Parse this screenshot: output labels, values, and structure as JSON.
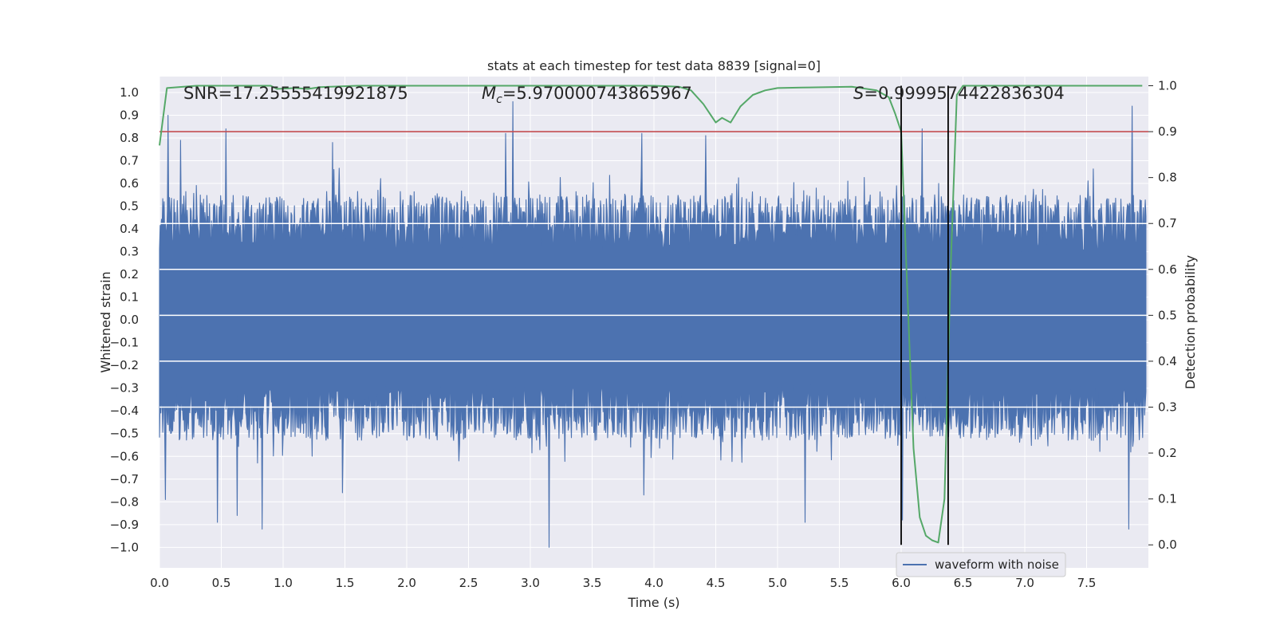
{
  "chart_data": {
    "type": "line",
    "title": "stats at each timestep for test data 8839 [signal=0]",
    "xlabel": "Time (s)",
    "ylabel_left": "Whitened strain",
    "ylabel_right": "Detection probability",
    "xlim": [
      0.0,
      8.0
    ],
    "ylim_left": [
      -1.09,
      1.07
    ],
    "ylim_right": [
      -0.05,
      1.02
    ],
    "x_ticks": [
      "0.0",
      "0.5",
      "1.0",
      "1.5",
      "2.0",
      "2.5",
      "3.0",
      "3.5",
      "4.0",
      "4.5",
      "5.0",
      "5.5",
      "6.0",
      "6.5",
      "7.0",
      "7.5"
    ],
    "y_left_ticks": [
      "1.0",
      "0.9",
      "0.8",
      "0.7",
      "0.6",
      "0.5",
      "0.4",
      "0.3",
      "0.2",
      "0.1",
      "0.0",
      "-0.1",
      "-0.2",
      "-0.3",
      "-0.4",
      "-0.5",
      "-0.6",
      "-0.7",
      "-0.8",
      "-0.9",
      "-1.0"
    ],
    "y_right_ticks": [
      "1.0",
      "0.9",
      "0.8",
      "0.7",
      "0.6",
      "0.5",
      "0.4",
      "0.3",
      "0.2",
      "0.1",
      "0.0"
    ],
    "grid": true,
    "annotations": {
      "snr": "SNR=17.25555419921875",
      "mc_symbol": "M",
      "mc_subscript": "c",
      "mc_value": "=5.970000743865967",
      "s_symbol": "S",
      "s_value": "=0.9999574422836304"
    },
    "legend": {
      "entries": [
        "waveform with noise"
      ],
      "placement": "lower-right"
    },
    "colors": {
      "waveform": "#4c72b0",
      "probability": "#55a868",
      "threshold": "#c44e52",
      "markers": "#000000",
      "background": "#eaeaf2",
      "grid": "#ffffff"
    },
    "series": [
      {
        "name": "waveform with noise",
        "axis": "left",
        "description": "whitened strain noise, roughly +/-0.55 with spikes up to 0.96 and down to -1.0",
        "samples": 1500,
        "peak_spikes": [
          {
            "x": 0.07,
            "y": 0.9
          },
          {
            "x": 0.17,
            "y": 0.79
          },
          {
            "x": 0.54,
            "y": 0.84
          },
          {
            "x": 1.4,
            "y": 0.78
          },
          {
            "x": 2.8,
            "y": 0.82
          },
          {
            "x": 2.86,
            "y": 0.96
          },
          {
            "x": 3.9,
            "y": 0.82
          },
          {
            "x": 4.42,
            "y": 0.81
          },
          {
            "x": 6.17,
            "y": 0.84
          },
          {
            "x": 7.87,
            "y": 0.94
          }
        ],
        "trough_spikes": [
          {
            "x": 0.05,
            "y": -0.79
          },
          {
            "x": 0.47,
            "y": -0.89
          },
          {
            "x": 0.63,
            "y": -0.86
          },
          {
            "x": 0.83,
            "y": -0.92
          },
          {
            "x": 1.48,
            "y": -0.76
          },
          {
            "x": 3.15,
            "y": -1.0
          },
          {
            "x": 3.92,
            "y": -0.77
          },
          {
            "x": 5.22,
            "y": -0.89
          },
          {
            "x": 6.01,
            "y": -0.88
          },
          {
            "x": 7.84,
            "y": -0.92
          }
        ]
      },
      {
        "name": "detection probability",
        "axis": "right",
        "x": [
          0.0,
          0.06,
          0.3,
          0.6,
          0.9,
          0.95,
          1.1,
          1.2,
          1.3,
          1.6,
          2.0,
          3.0,
          4.0,
          4.2,
          4.3,
          4.4,
          4.5,
          4.55,
          4.62,
          4.7,
          4.8,
          4.9,
          5.0,
          5.2,
          5.6,
          5.8,
          5.9,
          5.95,
          6.0,
          6.05,
          6.1,
          6.15,
          6.2,
          6.25,
          6.3,
          6.35,
          6.4,
          6.45,
          6.5,
          7.0,
          7.5,
          7.95
        ],
        "y": [
          0.87,
          0.995,
          1.0,
          1.0,
          1.0,
          0.993,
          0.995,
          0.993,
          0.997,
          1.0,
          1.0,
          1.0,
          1.0,
          0.998,
          0.99,
          0.96,
          0.92,
          0.93,
          0.92,
          0.955,
          0.98,
          0.99,
          0.995,
          0.996,
          0.998,
          0.99,
          0.975,
          0.94,
          0.9,
          0.55,
          0.21,
          0.06,
          0.02,
          0.01,
          0.005,
          0.1,
          0.6,
          0.98,
          1.0,
          1.0,
          1.0,
          1.0
        ]
      }
    ],
    "threshold": {
      "axis": "right",
      "y": 0.9
    },
    "vertical_lines_x": [
      6.0,
      6.38
    ],
    "white_hlines_right": [
      0.7,
      0.6,
      0.5,
      0.4,
      0.3
    ]
  }
}
